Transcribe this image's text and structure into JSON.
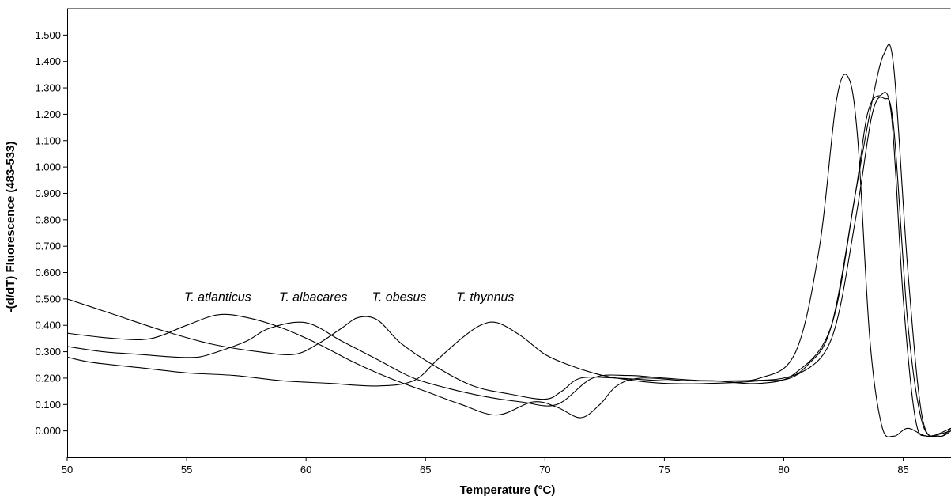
{
  "chart_data": {
    "type": "line",
    "title": "",
    "xlabel": "Temperature (°C)",
    "ylabel": "-(d/dT) Fluorescence (483-533)",
    "xlim": [
      50,
      87
    ],
    "ylim": [
      -0.1,
      1.6
    ],
    "xticks": [
      50,
      55,
      60,
      65,
      70,
      75,
      80,
      85
    ],
    "xtick_labels": [
      "50",
      "55",
      "60",
      "65",
      "70",
      "75",
      "80",
      "85"
    ],
    "yticks": [
      0,
      0.1,
      0.2,
      0.3,
      0.4,
      0.5,
      0.6,
      0.7,
      0.8,
      0.9,
      1.0,
      1.1,
      1.2,
      1.3,
      1.4,
      1.5
    ],
    "ytick_labels": [
      "0.000",
      "0.100",
      "0.200",
      "0.300",
      "0.400",
      "0.500",
      "0.600",
      "0.700",
      "0.800",
      "0.900",
      "1.000",
      "1.100",
      "1.200",
      "1.300",
      "1.400",
      "1.500"
    ],
    "grid": false,
    "annotations": [
      {
        "text": "T. atlanticus",
        "x": 56.3,
        "y": 0.51
      },
      {
        "text": "T. albacares",
        "x": 60.3,
        "y": 0.51
      },
      {
        "text": "T. obesus",
        "x": 63.9,
        "y": 0.51
      },
      {
        "text": "T. thynnus",
        "x": 67.5,
        "y": 0.51
      }
    ],
    "series": [
      {
        "x": [
          50,
          51.5,
          53,
          54.5,
          55.5,
          56.3,
          57.5,
          58.5,
          60,
          61.5,
          63,
          64.5,
          66,
          67.5,
          69,
          70.5,
          72,
          73.5,
          75,
          77,
          79,
          80.5,
          81.5,
          82.2,
          82.7,
          83.1,
          83.6,
          84.1,
          84.6,
          85.2,
          86,
          87
        ],
        "y": [
          0.32,
          0.3,
          0.29,
          0.28,
          0.28,
          0.3,
          0.34,
          0.39,
          0.41,
          0.34,
          0.27,
          0.2,
          0.16,
          0.13,
          0.11,
          0.1,
          0.2,
          0.21,
          0.2,
          0.19,
          0.2,
          0.3,
          0.7,
          1.25,
          1.34,
          1.1,
          0.35,
          0.02,
          -0.02,
          0.01,
          -0.02,
          0.0
        ]
      },
      {
        "x": [
          50,
          52,
          53.5,
          55,
          56.3,
          57.5,
          59,
          60.5,
          62,
          63.5,
          65,
          66.5,
          68,
          69.5,
          70.5,
          71.5,
          72.3,
          73,
          74,
          76,
          78,
          80,
          81,
          82,
          83,
          83.5,
          84,
          84.5,
          85,
          85.5,
          86,
          87
        ],
        "y": [
          0.37,
          0.35,
          0.35,
          0.4,
          0.44,
          0.43,
          0.39,
          0.33,
          0.26,
          0.2,
          0.15,
          0.1,
          0.06,
          0.11,
          0.09,
          0.05,
          0.1,
          0.17,
          0.2,
          0.19,
          0.19,
          0.2,
          0.25,
          0.4,
          0.9,
          1.2,
          1.27,
          1.2,
          0.5,
          0.05,
          -0.02,
          0.01
        ]
      },
      {
        "x": [
          50,
          52,
          54,
          56,
          58,
          59.5,
          60.5,
          61.5,
          62.2,
          63,
          64,
          65.5,
          67,
          68.5,
          70,
          70.7,
          71.5,
          73,
          75,
          77,
          79,
          80.5,
          82,
          83,
          83.7,
          84.2,
          84.6,
          85.2,
          85.8,
          86.5,
          87
        ],
        "y": [
          0.5,
          0.44,
          0.38,
          0.33,
          0.3,
          0.29,
          0.33,
          0.39,
          0.43,
          0.42,
          0.33,
          0.24,
          0.17,
          0.14,
          0.12,
          0.15,
          0.2,
          0.2,
          0.19,
          0.19,
          0.18,
          0.22,
          0.4,
          0.9,
          1.25,
          1.43,
          1.38,
          0.6,
          0.05,
          -0.02,
          0.01
        ]
      },
      {
        "x": [
          50,
          51,
          53,
          55,
          57,
          59,
          61,
          63,
          64.5,
          65.5,
          66.5,
          67.3,
          68,
          69,
          70,
          71,
          72,
          73,
          75,
          77,
          79,
          80.5,
          82,
          83,
          83.7,
          84.2,
          84.6,
          85.2,
          85.8,
          86.5,
          87
        ],
        "y": [
          0.28,
          0.26,
          0.24,
          0.22,
          0.21,
          0.19,
          0.18,
          0.17,
          0.19,
          0.27,
          0.35,
          0.4,
          0.41,
          0.36,
          0.29,
          0.25,
          0.22,
          0.2,
          0.18,
          0.18,
          0.19,
          0.21,
          0.35,
          0.8,
          1.2,
          1.26,
          1.15,
          0.4,
          0.03,
          -0.02,
          0.0
        ]
      }
    ]
  }
}
